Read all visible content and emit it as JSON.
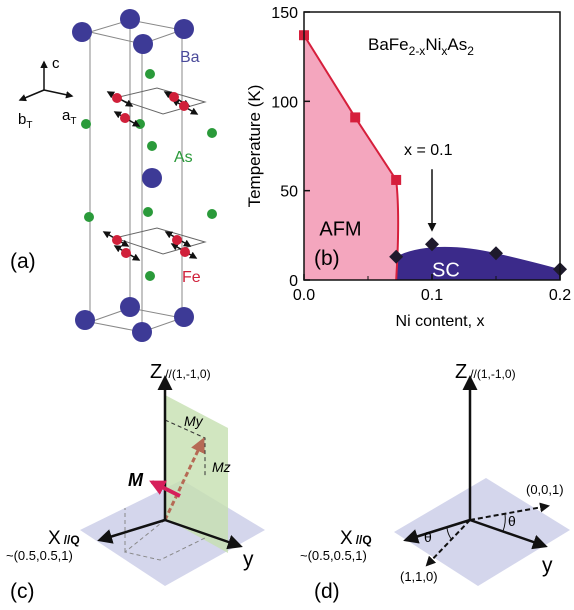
{
  "panel_labels": {
    "a": "(a)",
    "b": "(b)",
    "c": "(c)",
    "d": "(d)"
  },
  "panel_a": {
    "atom_labels": {
      "ba": "Ba",
      "as": "As",
      "fe": "Fe"
    },
    "axes": {
      "c": "c",
      "b": "b",
      "b_sub": "T",
      "a": "a",
      "a_sub": "T"
    },
    "colors": {
      "ba": "#3d3a96",
      "as": "#2a9a3a",
      "fe": "#d0203a"
    }
  },
  "chart_data": {
    "type": "phase-diagram",
    "title_parts": {
      "base": "BaFe",
      "sub1": "2-x",
      "mid1": "Ni",
      "sub2": "x",
      "mid2": "As",
      "sub3": "2"
    },
    "xlabel": "Ni content, x",
    "ylabel": "Temperature (K)",
    "xlim": [
      0.0,
      0.2
    ],
    "ylim": [
      0,
      150
    ],
    "xticks": [
      "0.0",
      "0.1",
      "0.2"
    ],
    "yticks": [
      "0",
      "50",
      "100",
      "150"
    ],
    "series": [
      {
        "name": "AFM",
        "marker": "square",
        "color": "#d61f3c",
        "x": [
          0.0,
          0.04,
          0.072
        ],
        "y": [
          137,
          91,
          56
        ]
      },
      {
        "name": "SC",
        "marker": "diamond",
        "color": "#1e1a2c",
        "x": [
          0.072,
          0.1,
          0.15,
          0.2
        ],
        "y": [
          13,
          20,
          15,
          6
        ]
      }
    ],
    "region_labels": {
      "afm": "AFM",
      "sc": "SC"
    },
    "annotation": {
      "text": "x = 0.1",
      "x": 0.1
    },
    "colors": {
      "afm_fill": "#f4a6be",
      "sc_fill": "#3b2a8a"
    }
  },
  "panel_c": {
    "z_label": "Z",
    "z_sub": "//(1,-1,0)",
    "x_label": "X",
    "x_sub": "//Q",
    "x_vec": "~(0.5,0.5,1)",
    "y_label": "y",
    "m_label": "M",
    "my_label": "My",
    "mz_label": "Mz"
  },
  "panel_d": {
    "z_label": "Z",
    "z_sub": "//(1,-1,0)",
    "x_label": "X",
    "x_sub": "//Q",
    "x_vec": "~(0.5,0.5,1)",
    "y_label": "y",
    "vec1": "(1,1,0)",
    "vec2": "(0,0,1)",
    "theta": "θ"
  }
}
